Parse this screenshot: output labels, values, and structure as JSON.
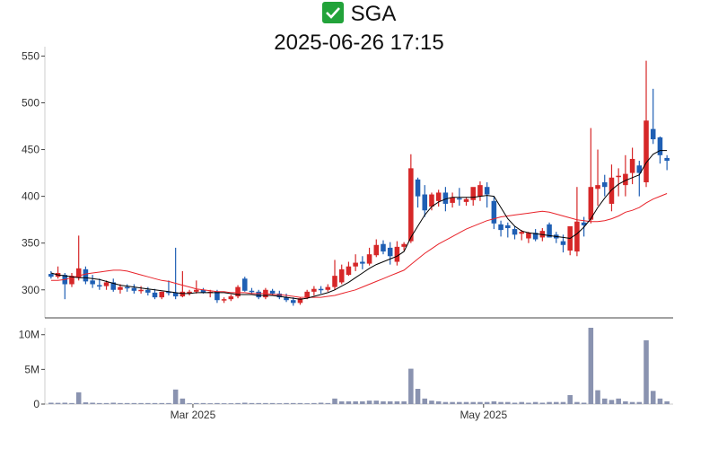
{
  "header": {
    "ticker": "SGA",
    "datetime": "2025-06-26 17:15",
    "status_icon": "check-mark-icon",
    "status_color": "#22a33a"
  },
  "colors": {
    "up": "#d62728",
    "down": "#1f5fb4",
    "ma_short": "#000000",
    "ma_long": "#e8232a",
    "volume": "#8a93b0"
  },
  "chart_data": [
    {
      "type": "candlestick",
      "title": "SGA",
      "subtitle": "2025-06-26 17:15",
      "ylim": [
        270,
        560
      ],
      "yticks": [
        300,
        350,
        400,
        450,
        500,
        550
      ],
      "grid": false,
      "series": [
        {
          "name": "",
          "kind": "candles",
          "values": [
            [
              317,
              320,
              312,
              314
            ],
            [
              314,
              325,
              312,
              318
            ],
            [
              316,
              318,
              290,
              306
            ],
            [
              306,
              318,
              303,
              315
            ],
            [
              313,
              358,
              310,
              323
            ],
            [
              322,
              325,
              306,
              309
            ],
            [
              310,
              316,
              302,
              306
            ],
            [
              305,
              312,
              300,
              304
            ],
            [
              304,
              310,
              300,
              308
            ],
            [
              308,
              312,
              298,
              300
            ],
            [
              300,
              306,
              296,
              303
            ],
            [
              303,
              306,
              298,
              302
            ],
            [
              302,
              306,
              296,
              299
            ],
            [
              299,
              304,
              296,
              300
            ],
            [
              300,
              303,
              294,
              297
            ],
            [
              297,
              301,
              290,
              292
            ],
            [
              292,
              298,
              290,
              298
            ],
            [
              298,
              310,
              294,
              297
            ],
            [
              297,
              345,
              290,
              293
            ],
            [
              293,
              320,
              292,
              298
            ],
            [
              296,
              300,
              294,
              298
            ],
            [
              298,
              310,
              296,
              300
            ],
            [
              300,
              302,
              296,
              297
            ],
            [
              297,
              300,
              292,
              298
            ],
            [
              298,
              300,
              286,
              289
            ],
            [
              289,
              292,
              286,
              290
            ],
            [
              290,
              295,
              288,
              293
            ],
            [
              293,
              305,
              291,
              303
            ],
            [
              312,
              314,
              298,
              299
            ],
            [
              299,
              302,
              296,
              298
            ],
            [
              298,
              300,
              290,
              292
            ],
            [
              292,
              302,
              290,
              300
            ],
            [
              299,
              301,
              294,
              296
            ],
            [
              296,
              299,
              290,
              292
            ],
            [
              292,
              296,
              287,
              289
            ],
            [
              289,
              292,
              283,
              286
            ],
            [
              286,
              292,
              284,
              291
            ],
            [
              292,
              300,
              290,
              298
            ],
            [
              298,
              304,
              294,
              301
            ],
            [
              301,
              304,
              296,
              300
            ],
            [
              300,
              306,
              298,
              303
            ],
            [
              303,
              332,
              300,
              315
            ],
            [
              308,
              327,
              306,
              322
            ],
            [
              316,
              330,
              315,
              325
            ],
            [
              325,
              338,
              320,
              329
            ],
            [
              330,
              336,
              322,
              328
            ],
            [
              328,
              345,
              326,
              338
            ],
            [
              337,
              354,
              335,
              348
            ],
            [
              349,
              353,
              338,
              341
            ],
            [
              345,
              351,
              327,
              336
            ],
            [
              330,
              352,
              326,
              346
            ],
            [
              346,
              351,
              342,
              349
            ],
            [
              352,
              445,
              350,
              430
            ],
            [
              418,
              420,
              388,
              400
            ],
            [
              402,
              412,
              378,
              385
            ],
            [
              389,
              404,
              385,
              402
            ],
            [
              395,
              407,
              389,
              404
            ],
            [
              404,
              410,
              384,
              392
            ],
            [
              393,
              404,
              388,
              399
            ],
            [
              398,
              409,
              390,
              397
            ],
            [
              394,
              399,
              390,
              397
            ],
            [
              396,
              406,
              390,
              410
            ],
            [
              400,
              416,
              395,
              412
            ],
            [
              410,
              415,
              388,
              402
            ],
            [
              395,
              400,
              365,
              371
            ],
            [
              370,
              374,
              357,
              364
            ],
            [
              369,
              372,
              356,
              366
            ],
            [
              365,
              368,
              354,
              359
            ],
            [
              360,
              364,
              353,
              362
            ],
            [
              355,
              362,
              350,
              361
            ],
            [
              361,
              365,
              352,
              354
            ],
            [
              356,
              366,
              352,
              363
            ],
            [
              370,
              372,
              360,
              356
            ],
            [
              359,
              362,
              350,
              355
            ],
            [
              352,
              359,
              340,
              348
            ],
            [
              342,
              365,
              337,
              368
            ],
            [
              341,
              410,
              336,
              373
            ],
            [
              372,
              378,
              357,
              369
            ],
            [
              375,
              473,
              371,
              410
            ],
            [
              408,
              450,
              390,
              412
            ],
            [
              415,
              423,
              400,
              410
            ],
            [
              392,
              434,
              384,
              420
            ],
            [
              422,
              430,
              400,
              422
            ],
            [
              412,
              444,
              400,
              424
            ],
            [
              425,
              452,
              413,
              440
            ],
            [
              433,
              438,
              400,
              425
            ],
            [
              415,
              545,
              410,
              481
            ],
            [
              472,
              515,
              456,
              461
            ],
            [
              463,
              464,
              435,
              444
            ],
            [
              441,
              444,
              428,
              438
            ]
          ]
        },
        {
          "name": "",
          "kind": "ma_short",
          "values": [
            318,
            316,
            315,
            314,
            313,
            313,
            312,
            311,
            309,
            307,
            305,
            304,
            303,
            302,
            301,
            300,
            299,
            298,
            297,
            296,
            296,
            297,
            297,
            297,
            297,
            297,
            296,
            295,
            295,
            295,
            294,
            294,
            294,
            293,
            292,
            291,
            290,
            291,
            293,
            295,
            297,
            300,
            304,
            308,
            313,
            318,
            323,
            327,
            330,
            333,
            336,
            341,
            356,
            368,
            380,
            389,
            394,
            397,
            399,
            399,
            399,
            399,
            400,
            401,
            400,
            388,
            376,
            368,
            363,
            361,
            360,
            359,
            358,
            357,
            356,
            355,
            360,
            367,
            376,
            388,
            398,
            407,
            413,
            417,
            420,
            423,
            436,
            445,
            449,
            449
          ]
        },
        {
          "name": "",
          "kind": "ma_long",
          "values": [
            310,
            310,
            311,
            313,
            315,
            317,
            318,
            319,
            320,
            321,
            321,
            320,
            318,
            316,
            314,
            312,
            310,
            309,
            307,
            305,
            303,
            301,
            300,
            299,
            298,
            298,
            297,
            297,
            297,
            296,
            296,
            296,
            295,
            295,
            294,
            293,
            292,
            292,
            292,
            292,
            293,
            294,
            296,
            298,
            300,
            303,
            306,
            309,
            312,
            315,
            318,
            321,
            327,
            333,
            339,
            344,
            349,
            353,
            357,
            361,
            365,
            368,
            371,
            374,
            376,
            378,
            379,
            380,
            381,
            382,
            383,
            384,
            383,
            381,
            379,
            377,
            375,
            374,
            373,
            373,
            374,
            376,
            379,
            383,
            385,
            388,
            393,
            397,
            400,
            403
          ]
        }
      ]
    },
    {
      "type": "bar",
      "title": "",
      "ylim": [
        0,
        11000000
      ],
      "yticks": [
        0,
        5000000,
        10000000
      ],
      "ytick_labels": [
        "0",
        "5M",
        "10M"
      ],
      "xtick_labels": [
        "Mar 2025",
        "May 2025"
      ],
      "series": [
        {
          "name": "",
          "values": [
            200000,
            180000,
            200000,
            150000,
            1700000,
            250000,
            200000,
            150000,
            150000,
            200000,
            150000,
            150000,
            150000,
            150000,
            150000,
            150000,
            150000,
            150000,
            2100000,
            800000,
            120000,
            150000,
            150000,
            120000,
            150000,
            120000,
            120000,
            150000,
            200000,
            150000,
            150000,
            150000,
            150000,
            120000,
            150000,
            150000,
            150000,
            120000,
            150000,
            200000,
            150000,
            800000,
            400000,
            400000,
            400000,
            400000,
            500000,
            500000,
            400000,
            400000,
            400000,
            400000,
            5100000,
            2200000,
            800000,
            500000,
            400000,
            300000,
            300000,
            300000,
            300000,
            300000,
            300000,
            300000,
            400000,
            300000,
            300000,
            200000,
            300000,
            200000,
            300000,
            200000,
            300000,
            300000,
            300000,
            1300000,
            300000,
            200000,
            11000000,
            2000000,
            800000,
            600000,
            800000,
            400000,
            300000,
            300000,
            9200000,
            1900000,
            800000,
            400000
          ]
        }
      ]
    }
  ]
}
